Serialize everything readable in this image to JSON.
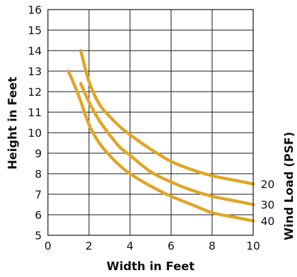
{
  "chart_data": {
    "type": "line",
    "title": "",
    "xlabel": "Width in Feet",
    "ylabel": "Height in Feet",
    "series_axis_label": "Wind Load (PSF)",
    "xlim": [
      0,
      10
    ],
    "ylim": [
      5,
      16
    ],
    "x_ticks": [
      0,
      2,
      4,
      6,
      8,
      10
    ],
    "y_ticks": [
      5,
      6,
      7,
      8,
      9,
      10,
      11,
      12,
      13,
      14,
      15,
      16
    ],
    "grid": true,
    "line_color": "#E0A526",
    "series": [
      {
        "name": "20",
        "x": [
          1.6,
          2.0,
          2.5,
          3.0,
          3.5,
          4.0,
          5.0,
          6.0,
          7.0,
          8.0,
          9.0,
          10.0
        ],
        "y": [
          14.0,
          12.5,
          11.4,
          10.8,
          10.3,
          9.9,
          9.2,
          8.6,
          8.2,
          7.9,
          7.7,
          7.5
        ]
      },
      {
        "name": "30",
        "x": [
          1.6,
          2.0,
          2.5,
          3.0,
          3.5,
          4.0,
          5.0,
          6.0,
          7.0,
          8.0,
          9.0,
          10.0
        ],
        "y": [
          12.4,
          11.5,
          10.6,
          9.9,
          9.3,
          8.9,
          8.1,
          7.6,
          7.2,
          6.9,
          6.7,
          6.5
        ]
      },
      {
        "name": "40",
        "x": [
          1.0,
          1.5,
          2.0,
          2.5,
          3.0,
          3.5,
          4.0,
          5.0,
          6.0,
          7.0,
          8.0,
          9.0,
          10.0
        ],
        "y": [
          13.0,
          11.8,
          10.4,
          9.5,
          8.9,
          8.4,
          8.0,
          7.4,
          6.9,
          6.5,
          6.1,
          5.9,
          5.7
        ]
      }
    ]
  }
}
